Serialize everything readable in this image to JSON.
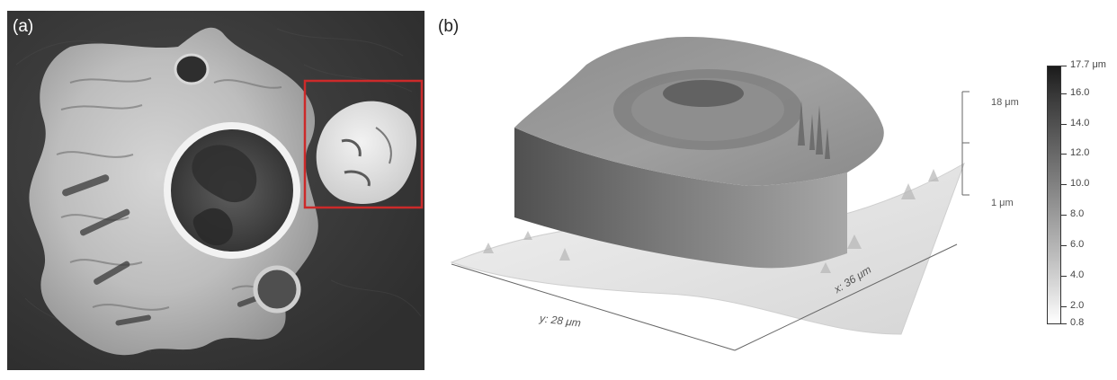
{
  "panels": {
    "a": {
      "label": "(a)"
    },
    "b": {
      "label": "(b)",
      "y_axis_label": "y: 28 μm",
      "x_axis_label": "x: 36 μm",
      "z_top_label": "18 μm",
      "z_bottom_label": "1 μm",
      "colorbar_top": "17.7 μm",
      "colorbar_ticks": [
        "16.0",
        "14.0",
        "12.0",
        "10.0",
        "8.0",
        "6.0",
        "4.0",
        "2.0",
        "0.8"
      ]
    }
  }
}
